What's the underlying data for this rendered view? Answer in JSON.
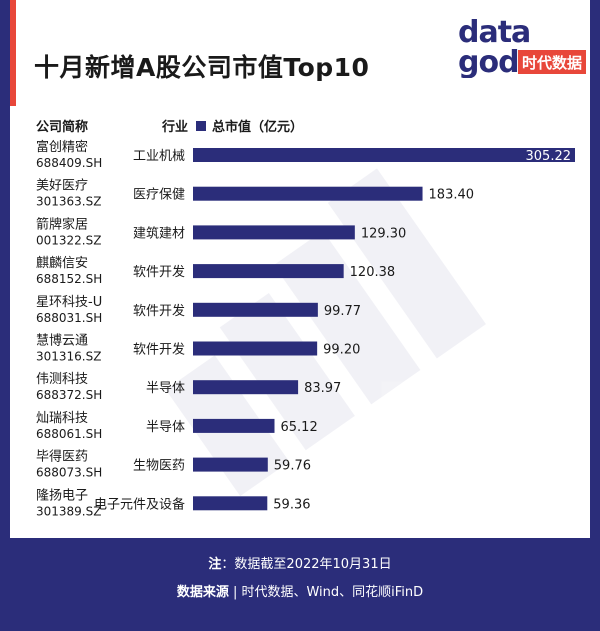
{
  "title": "十月新增A股公司市值Top10",
  "logo": {
    "word_top": "data",
    "word_bottom": "god",
    "brand": "时代数据"
  },
  "headers": {
    "company": "公司简称",
    "industry": "行业",
    "legend": "总市值（亿元）"
  },
  "colors": {
    "bar": "#2b2d7a",
    "accent": "#e8473a",
    "footer_bg": "#2b2d7a"
  },
  "chart_data": {
    "type": "bar",
    "orientation": "horizontal",
    "series": [
      {
        "name": "总市值（亿元）",
        "values": [
          305.22,
          183.4,
          129.3,
          120.38,
          99.77,
          99.2,
          83.97,
          65.12,
          59.76,
          59.36
        ]
      }
    ],
    "value_labels": [
      "305.22",
      "183.40",
      "129.30",
      "120.38",
      "99.77",
      "99.20",
      "83.97",
      "65.12",
      "59.76",
      "59.36"
    ],
    "companies": [
      "富创精密",
      "美好医疗",
      "箭牌家居",
      "麒麟信安",
      "星环科技-U",
      "慧博云通",
      "伟测科技",
      "灿瑞科技",
      "毕得医药",
      "隆扬电子"
    ],
    "codes": [
      "688409.SH",
      "301363.SZ",
      "001322.SZ",
      "688152.SH",
      "688031.SH",
      "301316.SZ",
      "688372.SH",
      "688061.SH",
      "688073.SH",
      "301389.SZ"
    ],
    "industries": [
      "工业机械",
      "医疗保健",
      "建筑建材",
      "软件开发",
      "软件开发",
      "软件开发",
      "半导体",
      "半导体",
      "生物医药",
      "电子元件及设备"
    ]
  },
  "footer": {
    "note_label": "注",
    "note_text": "：数据截至2022年10月31日",
    "source_label": "数据来源",
    "source_text": " | 时代数据、Wind、同花顺iFinD"
  }
}
